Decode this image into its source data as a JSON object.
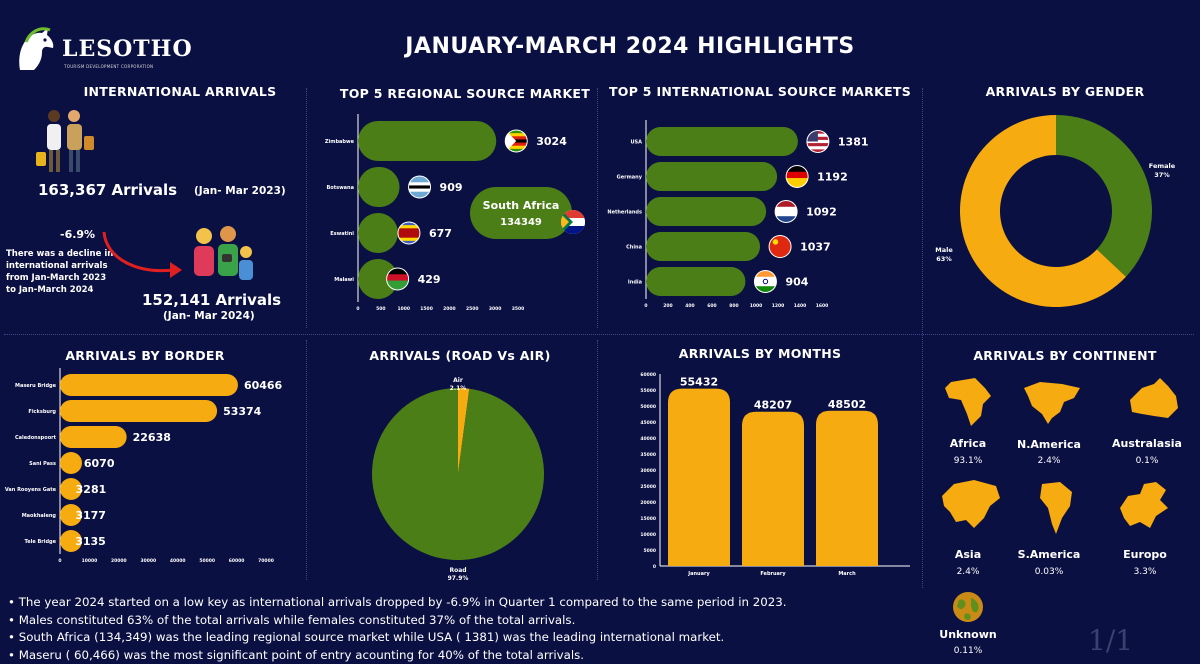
{
  "header": {
    "logo_text": "LESOTHO",
    "logo_sub": "TOURISM DEVELOPMENT CORPORATION",
    "title": "JANUARY-MARCH 2024 HIGHLIGHTS"
  },
  "colors": {
    "background": "#0b1042",
    "green": "#4b7e16",
    "orange": "#f6ab10",
    "text": "#ffffff"
  },
  "intl": {
    "title": "INTERNATIONAL ARRIVALS",
    "arrivals_2023": "163,367 Arrivals",
    "period_2023": "(Jan- Mar 2023)",
    "change": "-6.9%",
    "note_lines": [
      "There was a decline in",
      "international arrivals",
      "from Jan-March  2023",
      "to  Jan-March 2024"
    ],
    "arrivals_2024": "152,141 Arrivals",
    "period_2024": "(Jan- Mar 2024)"
  },
  "regional": {
    "title": "TOP 5 REGIONAL  SOURCE MARKET",
    "callout_name": "South Africa",
    "callout_value": "134349"
  },
  "international": {
    "title": "TOP 5  INTERNATIONAL SOURCE MARKETS"
  },
  "gender": {
    "title": "ARRIVALS BY GENDER"
  },
  "border": {
    "title": "ARRIVALS BY BORDER"
  },
  "roadair": {
    "title": "ARRIVALS (ROAD Vs AIR)"
  },
  "months": {
    "title": "ARRIVALS BY MONTHS"
  },
  "continent": {
    "title": "ARRIVALS BY CONTINENT",
    "items": [
      {
        "name": "Africa",
        "pct": "93.1%",
        "icon": "africa-icon"
      },
      {
        "name": "N.America",
        "pct": "2.4%",
        "icon": "north-america-icon"
      },
      {
        "name": "Australasia",
        "pct": "0.1%",
        "icon": "australia-icon"
      },
      {
        "name": "Asia",
        "pct": "2.4%",
        "icon": "asia-icon"
      },
      {
        "name": "S.America",
        "pct": "0.03%",
        "icon": "south-america-icon"
      },
      {
        "name": "Europo",
        "pct": "3.3%",
        "icon": "europe-icon"
      },
      {
        "name": "Unknown",
        "pct": "0.11%",
        "icon": "globe-icon"
      }
    ]
  },
  "bullets": [
    "The year 2024 started on a low key as international  arrivals dropped by -6.9% in Quarter 1  compared to the same period in 2023.",
    "Males constituted 63% of the total arrivals while  females constituted  37% of the total arrivals.",
    "South Africa (134,349) was the leading regional source market while USA ( 1381) was the leading international market.",
    "Maseru ( 60,466) was the most significant point of entry acounting for 40% of the total arrivals."
  ],
  "page_number": "1/1",
  "chart_data": [
    {
      "id": "regional",
      "type": "bar",
      "orientation": "horizontal",
      "categories": [
        "Zimbabwe",
        "Botswana",
        "Eswatini",
        "Malawi"
      ],
      "values": [
        3024,
        909,
        677,
        429
      ],
      "xlim": [
        0,
        3500
      ],
      "ticks": [
        0,
        500,
        1000,
        1500,
        2000,
        2500,
        3000,
        3500
      ],
      "flags": [
        "zimbabwe-flag",
        "botswana-flag",
        "eswatini-flag",
        "malawi-flag"
      ]
    },
    {
      "id": "international",
      "type": "bar",
      "orientation": "horizontal",
      "categories": [
        "USA",
        "Germany",
        "Netherlands",
        "China",
        "India"
      ],
      "values": [
        1381,
        1192,
        1092,
        1037,
        904
      ],
      "xlim": [
        0,
        1600
      ],
      "ticks": [
        0,
        200,
        400,
        600,
        800,
        1000,
        1200,
        1400,
        1600
      ],
      "flags": [
        "usa-flag",
        "germany-flag",
        "netherlands-flag",
        "china-flag",
        "india-flag"
      ]
    },
    {
      "id": "gender",
      "type": "pie",
      "donut": true,
      "categories": [
        "Female",
        "Male"
      ],
      "values": [
        37,
        63
      ],
      "labels": [
        "Female\n37%",
        "Male\n63%"
      ]
    },
    {
      "id": "border",
      "type": "bar",
      "orientation": "horizontal",
      "categories": [
        "Maseru Bridge",
        "Ficksburg",
        "Caledonspoort",
        "Sani Pass",
        "Van Rooyens Gate",
        "Maokhaleng",
        "Tele Bridge"
      ],
      "values": [
        60466,
        53374,
        22638,
        6070,
        3281,
        3177,
        3135
      ],
      "xlim": [
        0,
        70000
      ],
      "ticks": [
        0,
        10000,
        20000,
        30000,
        40000,
        50000,
        60000,
        70000
      ]
    },
    {
      "id": "roadair",
      "type": "pie",
      "categories": [
        "Air",
        "Road"
      ],
      "values": [
        2.1,
        97.9
      ],
      "labels": [
        "Air\n2.1%",
        "Road\n97.9%"
      ]
    },
    {
      "id": "months",
      "type": "bar",
      "orientation": "vertical",
      "categories": [
        "January",
        "February",
        "March"
      ],
      "values": [
        55432,
        48207,
        48502
      ],
      "ylim": [
        0,
        60000
      ],
      "ticks": [
        0,
        5000,
        10000,
        15000,
        20000,
        25000,
        30000,
        35000,
        40000,
        45000,
        50000,
        55000,
        60000
      ]
    }
  ]
}
